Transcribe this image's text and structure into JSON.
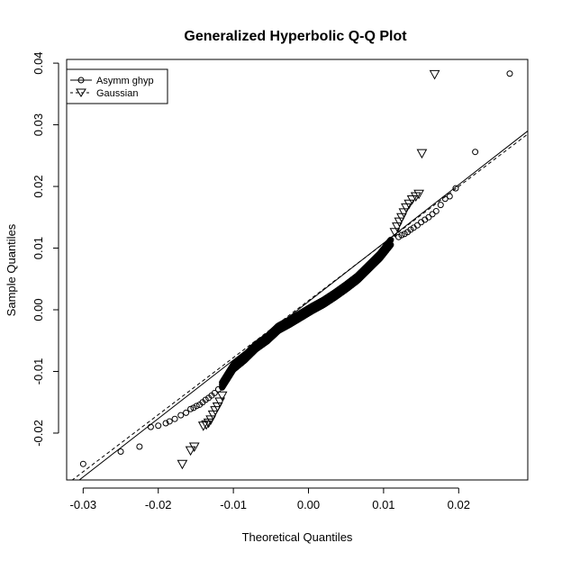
{
  "chart_data": {
    "type": "scatter",
    "title": "Generalized Hyperbolic Q-Q Plot",
    "xlabel": "Theoretical Quantiles",
    "ylabel": "Sample Quantiles",
    "xlim": [
      -0.0322,
      0.0292
    ],
    "ylim": [
      -0.0276,
      0.0406
    ],
    "xticks": [
      -0.03,
      -0.02,
      -0.01,
      0.0,
      0.01,
      0.02
    ],
    "xtick_labels": [
      "-0.03",
      "-0.02",
      "-0.01",
      "0.00",
      "0.01",
      "0.02"
    ],
    "yticks": [
      -0.02,
      -0.01,
      0.0,
      0.01,
      0.02,
      0.03,
      0.04
    ],
    "ytick_labels": [
      "-0.02",
      "-0.01",
      "0.00",
      "0.01",
      "0.02",
      "0.03",
      "0.04"
    ],
    "legend": {
      "position": "top-left",
      "entries": [
        {
          "label": "Asymm ghyp",
          "marker": "circle",
          "line": "solid"
        },
        {
          "label": "Gaussian",
          "marker": "triangle-down",
          "line": "dashed"
        }
      ]
    },
    "series": [
      {
        "name": "Asymm ghyp",
        "marker": "circle",
        "x": [
          -0.03,
          -0.025,
          -0.0225,
          -0.021,
          -0.02,
          -0.019,
          -0.0185,
          -0.0178,
          -0.017,
          -0.0163,
          -0.0157,
          -0.0153,
          -0.0149,
          -0.0145,
          -0.0141,
          -0.0137,
          -0.0133,
          -0.0129,
          -0.0125,
          -0.012,
          -0.0115,
          0.012,
          0.0124,
          0.0128,
          0.0132,
          0.0136,
          0.014,
          0.0145,
          0.015,
          0.0155,
          0.016,
          0.0165,
          0.017,
          0.0176,
          0.0182,
          0.0188,
          0.0196,
          0.0222,
          0.0268
        ],
        "y": [
          -0.025,
          -0.023,
          -0.0222,
          -0.019,
          -0.0188,
          -0.0184,
          -0.0181,
          -0.0177,
          -0.0171,
          -0.0167,
          -0.0161,
          -0.0159,
          -0.0156,
          -0.0154,
          -0.015,
          -0.0146,
          -0.0143,
          -0.0139,
          -0.0135,
          -0.0129,
          -0.0122,
          0.0118,
          0.0121,
          0.0123,
          0.0126,
          0.013,
          0.0133,
          0.0137,
          0.0142,
          0.0146,
          0.015,
          0.0155,
          0.016,
          0.017,
          0.018,
          0.0184,
          0.0197,
          0.0256,
          0.0383
        ]
      },
      {
        "name": "Gaussian",
        "marker": "triangle-down",
        "x": [
          -0.0168,
          -0.0157,
          -0.0152,
          -0.014,
          -0.0136,
          -0.0133,
          -0.013,
          -0.0127,
          -0.0124,
          -0.0121,
          -0.0118,
          -0.0115,
          0.0115,
          0.0118,
          0.0121,
          0.0124,
          0.0127,
          0.013,
          0.0134,
          0.0138,
          0.0143,
          0.0147,
          0.0151,
          0.0168
        ],
        "y": [
          -0.025,
          -0.0228,
          -0.0222,
          -0.0188,
          -0.0186,
          -0.0183,
          -0.0178,
          -0.017,
          -0.0163,
          -0.0157,
          -0.0149,
          -0.0139,
          0.0126,
          0.0135,
          0.0143,
          0.015,
          0.0158,
          0.0166,
          0.0172,
          0.0179,
          0.0184,
          0.0188,
          0.0254,
          0.0382
        ]
      },
      {
        "name": "Asymm ghyp",
        "marker": "circle",
        "note_role": "central dense band",
        "band_x": [
          -0.0115,
          -0.01,
          -0.0085,
          -0.007,
          -0.0055,
          -0.004,
          -0.0025,
          -0.001,
          0.0005,
          0.002,
          0.0035,
          0.005,
          0.0065,
          0.008,
          0.0095,
          0.011
        ],
        "band_y": [
          -0.0122,
          -0.0093,
          -0.0078,
          -0.006,
          -0.0047,
          -0.003,
          -0.002,
          -0.0009,
          0.0002,
          0.0012,
          0.0024,
          0.0037,
          0.0051,
          0.0069,
          0.0087,
          0.011
        ]
      }
    ],
    "reference_lines": [
      {
        "series": "Asymm ghyp",
        "style": "solid",
        "x": [
          -0.0322,
          0.0292
        ],
        "y": [
          -0.0292,
          0.029
        ]
      },
      {
        "series": "Gaussian",
        "style": "dashed",
        "x": [
          -0.0322,
          0.0292
        ],
        "y": [
          -0.0283,
          0.0285
        ]
      }
    ],
    "grid": false
  }
}
